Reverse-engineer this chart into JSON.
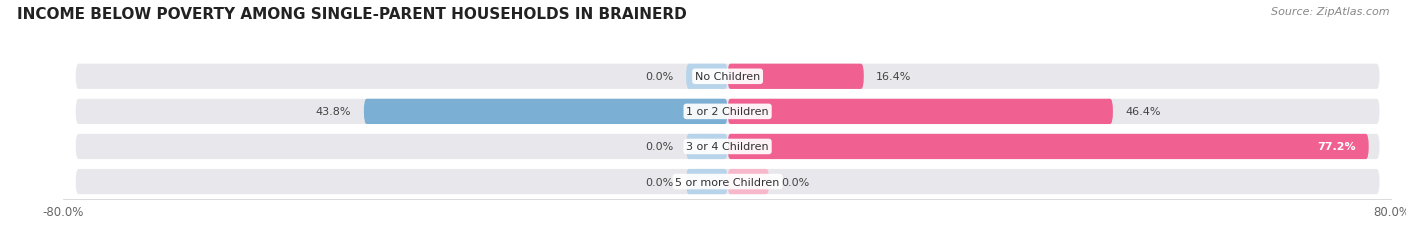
{
  "title": "INCOME BELOW POVERTY AMONG SINGLE-PARENT HOUSEHOLDS IN BRAINERD",
  "source": "Source: ZipAtlas.com",
  "categories": [
    "No Children",
    "1 or 2 Children",
    "3 or 4 Children",
    "5 or more Children"
  ],
  "single_father": [
    0.0,
    43.8,
    0.0,
    0.0
  ],
  "single_mother": [
    16.4,
    46.4,
    77.2,
    0.0
  ],
  "father_color": "#7bafd4",
  "mother_color": "#f06090",
  "father_color_light": "#b8d4ea",
  "mother_color_light": "#f8b8cc",
  "bar_bg_color": "#e8e8ec",
  "xlim_left": -80.0,
  "xlim_right": 80.0,
  "bar_height": 0.72,
  "title_fontsize": 11,
  "source_fontsize": 8,
  "label_fontsize": 8,
  "tick_fontsize": 8.5,
  "small_stub": 5.0
}
